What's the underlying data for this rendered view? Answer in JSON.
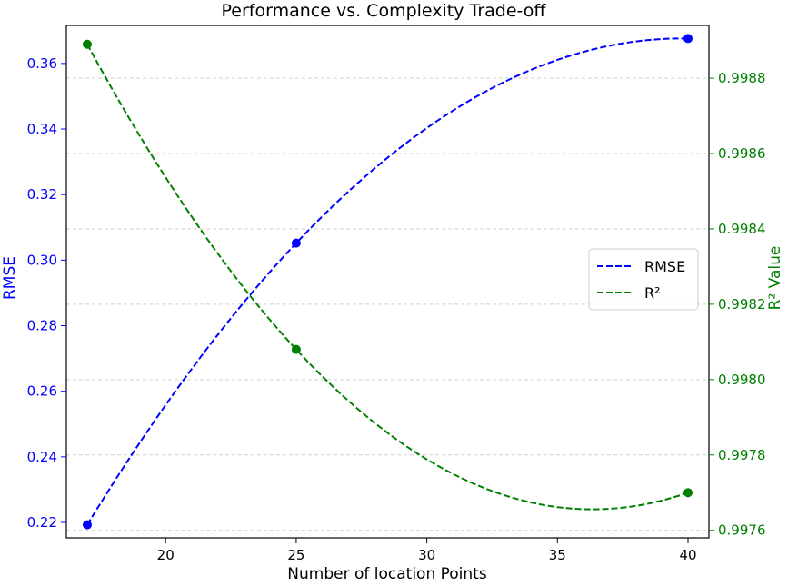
{
  "chart_data": {
    "type": "line",
    "title": "Performance vs. Complexity Trade-off",
    "xlabel": "Number of location Points",
    "ylabel": "RMSE",
    "y2label": "R² Value",
    "x": [
      17,
      25,
      40
    ],
    "xlim": [
      16.2,
      40.8
    ],
    "xticks": [
      20,
      25,
      30,
      35,
      40
    ],
    "ylim": [
      0.2153,
      0.3716
    ],
    "yticks": [
      0.22,
      0.24,
      0.26,
      0.28,
      0.3,
      0.32,
      0.34,
      0.36
    ],
    "y2lim": [
      0.99758,
      0.99894
    ],
    "y2ticks": [
      0.9976,
      0.9978,
      0.998,
      0.9982,
      0.9984,
      0.9986,
      0.9988
    ],
    "series": [
      {
        "name": "RMSE",
        "axis": "left",
        "color": "#0000ff",
        "style": "dashed",
        "values": [
          0.2193,
          0.3052,
          0.3676
        ]
      },
      {
        "name": "R²",
        "axis": "right",
        "color": "#008000",
        "style": "dashed",
        "values": [
          0.99889,
          0.99808,
          0.9977
        ]
      }
    ],
    "grid": "horizontal-dashed",
    "legend": "center-right"
  }
}
